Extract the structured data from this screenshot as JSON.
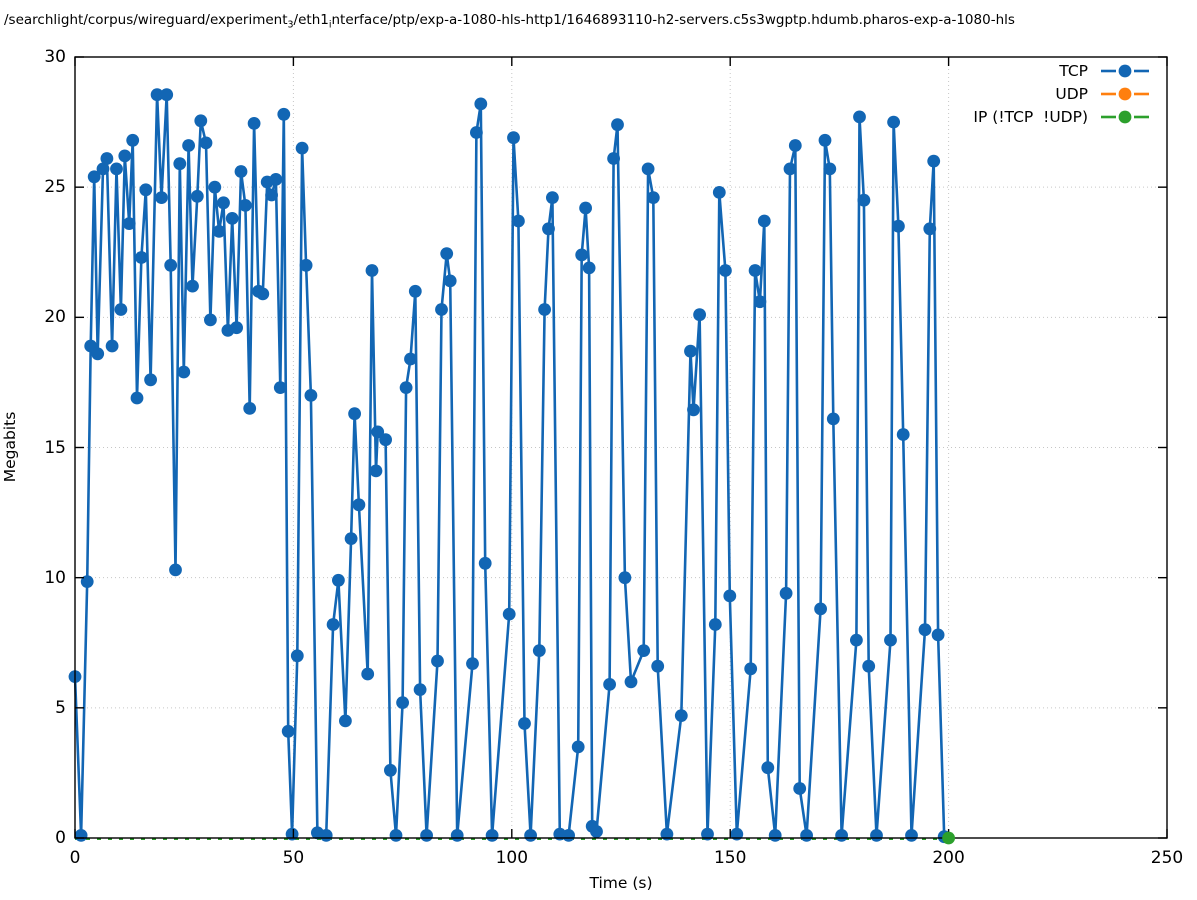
{
  "header": {
    "title_segments": [
      {
        "text": "/searchlight/corpus/wireguard/experiment"
      },
      {
        "sub": "3"
      },
      {
        "text": "/eth1"
      },
      {
        "sub": "i"
      },
      {
        "text": "nterface/ptp/exp-a-1080-hls-http1/1646893110-h2-servers.c5s3wgptp.hdumb.pharos-exp-a-1080-hls"
      }
    ],
    "title_plain": "/searchlight/corpus/wireguard/experiment_3/eth1_interface/ptp/exp-a-1080-hls-http1/1646893110-h2-servers.c5s3wgptp.hdumb.pharos-exp-a-1080-hls"
  },
  "colors": {
    "tcp": "#1266b4",
    "udp": "#ff7f0e",
    "ip": "#2ca02c",
    "grid": "#c6c6c6",
    "axis": "#000000",
    "background": "#ffffff"
  },
  "chart_data": {
    "type": "line",
    "title": "/searchlight/corpus/wireguard/experiment_3/eth1_interface/ptp/exp-a-1080-hls-http1/1646893110-h2-servers.c5s3wgptp.hdumb.pharos-exp-a-1080-hls",
    "xlabel": "Time (s)",
    "ylabel": "Megabits",
    "xlim": [
      0,
      250
    ],
    "ylim": [
      0,
      30
    ],
    "x_ticks": [
      0,
      50,
      100,
      150,
      200,
      250
    ],
    "y_ticks": [
      0,
      5,
      10,
      15,
      20,
      25,
      30
    ],
    "grid": "dotted",
    "legend_position": "top-right-inside",
    "series": [
      {
        "name": "TCP",
        "color": "#1266b4",
        "style": "linespoints",
        "points": [
          [
            0,
            6.2
          ],
          [
            1.4,
            0.1
          ],
          [
            2.8,
            9.85
          ],
          [
            3.6,
            18.9
          ],
          [
            4.4,
            25.4
          ],
          [
            5.2,
            18.6
          ],
          [
            6.4,
            25.7
          ],
          [
            7.3,
            26.1
          ],
          [
            8.5,
            18.9
          ],
          [
            9.5,
            25.7
          ],
          [
            10.5,
            20.3
          ],
          [
            11.4,
            26.2
          ],
          [
            12.4,
            23.6
          ],
          [
            13.2,
            26.8
          ],
          [
            14.2,
            16.9
          ],
          [
            15.2,
            22.3
          ],
          [
            16.2,
            24.9
          ],
          [
            17.3,
            17.6
          ],
          [
            18.8,
            28.55
          ],
          [
            19.8,
            24.6
          ],
          [
            21,
            28.55
          ],
          [
            21.9,
            22
          ],
          [
            23,
            10.3
          ],
          [
            24,
            25.9
          ],
          [
            24.9,
            17.9
          ],
          [
            26,
            26.6
          ],
          [
            26.9,
            21.2
          ],
          [
            28,
            24.65
          ],
          [
            28.8,
            27.55
          ],
          [
            30,
            26.7
          ],
          [
            31,
            19.9
          ],
          [
            32,
            25
          ],
          [
            33,
            23.3
          ],
          [
            34,
            24.4
          ],
          [
            35,
            19.5
          ],
          [
            36,
            23.8
          ],
          [
            37,
            19.6
          ],
          [
            38,
            25.6
          ],
          [
            39,
            24.3
          ],
          [
            40,
            16.5
          ],
          [
            41,
            27.45
          ],
          [
            42,
            21
          ],
          [
            43,
            20.9
          ],
          [
            44,
            25.2
          ],
          [
            45,
            24.7
          ],
          [
            46,
            25.3
          ],
          [
            47,
            17.3
          ],
          [
            47.8,
            27.8
          ],
          [
            48.8,
            4.1
          ],
          [
            49.7,
            0.15
          ],
          [
            50.9,
            7
          ],
          [
            52,
            26.5
          ],
          [
            52.9,
            22
          ],
          [
            54,
            17
          ],
          [
            55.5,
            0.2
          ],
          [
            57.5,
            0.1
          ],
          [
            59.1,
            8.2
          ],
          [
            60.3,
            9.9
          ],
          [
            61.9,
            4.5
          ],
          [
            63.2,
            11.5
          ],
          [
            64,
            16.3
          ],
          [
            65,
            12.8
          ],
          [
            67,
            6.3
          ],
          [
            68,
            21.8
          ],
          [
            68.9,
            14.1
          ],
          [
            69.3,
            15.6
          ],
          [
            71.1,
            15.3
          ],
          [
            72.2,
            2.6
          ],
          [
            73.5,
            0.1
          ],
          [
            75,
            5.2
          ],
          [
            75.8,
            17.3
          ],
          [
            76.8,
            18.4
          ],
          [
            77.9,
            21
          ],
          [
            79,
            5.7
          ],
          [
            80.5,
            0.1
          ],
          [
            83,
            6.8
          ],
          [
            83.9,
            20.3
          ],
          [
            85.1,
            22.45
          ],
          [
            85.9,
            21.4
          ],
          [
            87.5,
            0.1
          ],
          [
            91,
            6.7
          ],
          [
            91.9,
            27.1
          ],
          [
            92.9,
            28.2
          ],
          [
            93.9,
            10.55
          ],
          [
            95.5,
            0.1
          ],
          [
            99.4,
            8.6
          ],
          [
            100.4,
            26.9
          ],
          [
            101.5,
            23.7
          ],
          [
            102.9,
            4.4
          ],
          [
            104.3,
            0.1
          ],
          [
            106.3,
            7.2
          ],
          [
            107.5,
            20.3
          ],
          [
            108.4,
            23.4
          ],
          [
            109.3,
            24.6
          ],
          [
            111,
            0.15
          ],
          [
            113,
            0.1
          ],
          [
            115.2,
            3.5
          ],
          [
            116,
            22.4
          ],
          [
            116.9,
            24.2
          ],
          [
            117.7,
            21.9
          ],
          [
            118.4,
            0.45
          ],
          [
            119.4,
            0.25
          ],
          [
            122.4,
            5.9
          ],
          [
            123.3,
            26.1
          ],
          [
            124.2,
            27.4
          ],
          [
            125.9,
            10
          ],
          [
            127.3,
            6
          ],
          [
            130.2,
            7.2
          ],
          [
            131.2,
            25.7
          ],
          [
            132.4,
            24.6
          ],
          [
            133.4,
            6.6
          ],
          [
            135.5,
            0.15
          ],
          [
            138.8,
            4.7
          ],
          [
            140.9,
            18.7
          ],
          [
            141.6,
            16.45
          ],
          [
            143,
            20.1
          ],
          [
            144.8,
            0.15
          ],
          [
            146.6,
            8.2
          ],
          [
            147.5,
            24.8
          ],
          [
            148.9,
            21.8
          ],
          [
            149.9,
            9.3
          ],
          [
            151.5,
            0.15
          ],
          [
            154.7,
            6.5
          ],
          [
            155.7,
            21.8
          ],
          [
            156.8,
            20.6
          ],
          [
            157.8,
            23.7
          ],
          [
            158.6,
            2.7
          ],
          [
            160.3,
            0.1
          ],
          [
            162.8,
            9.4
          ],
          [
            163.7,
            25.7
          ],
          [
            164.9,
            26.6
          ],
          [
            165.9,
            1.9
          ],
          [
            167.5,
            0.1
          ],
          [
            170.7,
            8.8
          ],
          [
            171.7,
            26.8
          ],
          [
            172.8,
            25.7
          ],
          [
            173.6,
            16.1
          ],
          [
            175.5,
            0.1
          ],
          [
            178.9,
            7.6
          ],
          [
            179.6,
            27.7
          ],
          [
            180.6,
            24.5
          ],
          [
            181.7,
            6.6
          ],
          [
            183.5,
            0.1
          ],
          [
            186.7,
            7.6
          ],
          [
            187.4,
            27.5
          ],
          [
            188.5,
            23.5
          ],
          [
            189.6,
            15.5
          ],
          [
            191.5,
            0.1
          ],
          [
            194.6,
            8
          ],
          [
            195.7,
            23.4
          ],
          [
            196.6,
            26
          ],
          [
            197.6,
            7.8
          ],
          [
            199,
            0.05
          ]
        ]
      },
      {
        "name": "UDP",
        "color": "#ff7f0e",
        "style": "linespoints",
        "points": []
      },
      {
        "name": "IP (!TCP  !UDP)",
        "color": "#2ca02c",
        "style": "linespoints-dashed",
        "baseline": [
          [
            0,
            0
          ],
          [
            200,
            0
          ]
        ],
        "points": [
          [
            200,
            0
          ]
        ]
      }
    ]
  }
}
